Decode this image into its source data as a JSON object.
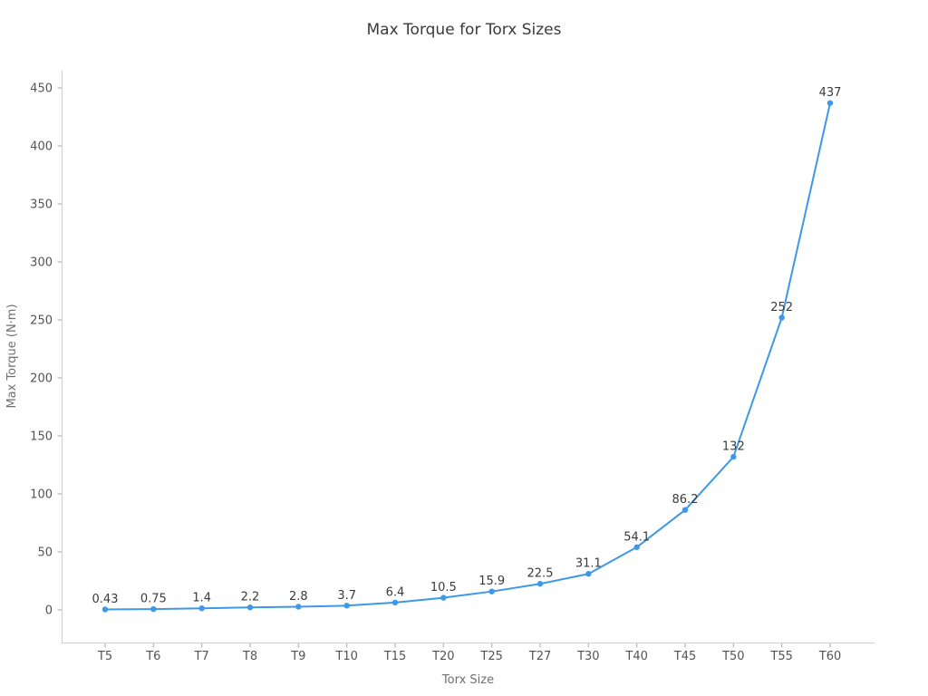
{
  "chart_data": {
    "type": "line",
    "title": "Max Torque for Torx Sizes",
    "xlabel": "Torx Size",
    "ylabel": "Max Torque (N·m)",
    "categories": [
      "T5",
      "T6",
      "T7",
      "T8",
      "T9",
      "T10",
      "T15",
      "T20",
      "T25",
      "T27",
      "T30",
      "T40",
      "T45",
      "T50",
      "T55",
      "T60"
    ],
    "values": [
      0.43,
      0.75,
      1.4,
      2.2,
      2.8,
      3.7,
      6.4,
      10.5,
      15.9,
      22.5,
      31.1,
      54.1,
      86.2,
      132,
      252,
      437
    ],
    "point_labels": [
      "0.43",
      "0.75",
      "1.4",
      "2.2",
      "2.8",
      "3.7",
      "6.4",
      "10.5",
      "15.9",
      "22.5",
      "31.1",
      "54.1",
      "86.2",
      "132",
      "252",
      "437"
    ],
    "yticks": [
      0,
      50,
      100,
      150,
      200,
      250,
      300,
      350,
      400,
      450
    ],
    "ylim": [
      -28.1,
      464.9
    ],
    "grid": false,
    "legend": null,
    "marker": "circle",
    "colors": {
      "line": "#3e97e8",
      "marker": "#3e97e8",
      "data_label": "#3a3a3a",
      "tick_label": "#545454",
      "axis_label": "#6f6f6f",
      "title": "#3b3b3b",
      "spine": "#cfcfcf",
      "tick_mark": "#b5b5b5",
      "background": "#ffffff"
    }
  }
}
